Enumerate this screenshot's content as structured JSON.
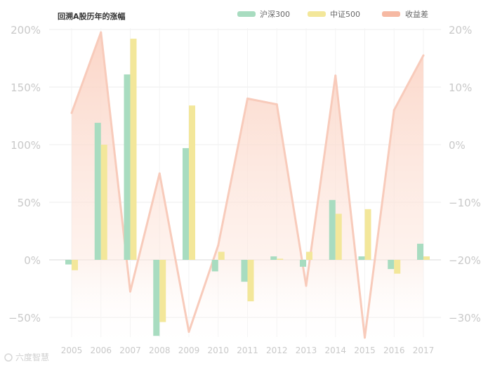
{
  "chart_data": {
    "type": "bar",
    "title": "回溯A股历年的涨幅",
    "categories": [
      "2005",
      "2006",
      "2007",
      "2008",
      "2009",
      "2010",
      "2011",
      "2012",
      "2013",
      "2014",
      "2015",
      "2016",
      "2017"
    ],
    "series": [
      {
        "name": "沪深300",
        "type": "bar",
        "axis": "left",
        "color": "#a8dcc0",
        "values": [
          -4,
          119,
          161,
          -66,
          97,
          -10,
          -19,
          3,
          -6,
          52,
          3,
          -8,
          14
        ]
      },
      {
        "name": "中证500",
        "type": "bar",
        "axis": "left",
        "color": "#f3e79a",
        "values": [
          -9,
          100,
          192,
          -54,
          134,
          7,
          -36,
          1,
          7,
          40,
          44,
          -12,
          3
        ]
      },
      {
        "name": "收益差",
        "type": "area",
        "axis": "right",
        "color": "#f6b9a3",
        "values": [
          5.5,
          19.5,
          -25.5,
          -5,
          -32.5,
          -17.5,
          8,
          7,
          -24.5,
          12,
          -33.5,
          6,
          15.5
        ]
      }
    ],
    "y_left": {
      "ticks": [
        200,
        150,
        100,
        50,
        0,
        -50
      ],
      "tick_labels": [
        "200%",
        "150%",
        "100%",
        "50%",
        "0%",
        "−50%"
      ],
      "ylim": [
        -60,
        215
      ]
    },
    "y_right": {
      "ticks": [
        20,
        10,
        0,
        -10,
        -20,
        -30
      ],
      "tick_labels": [
        "20%",
        "10%",
        "0%",
        "−10%",
        "−20%",
        "−30%"
      ],
      "ylim": [
        -33.5,
        20
      ]
    },
    "grid": true,
    "legend": "top-right"
  },
  "watermark": "六度智慧"
}
